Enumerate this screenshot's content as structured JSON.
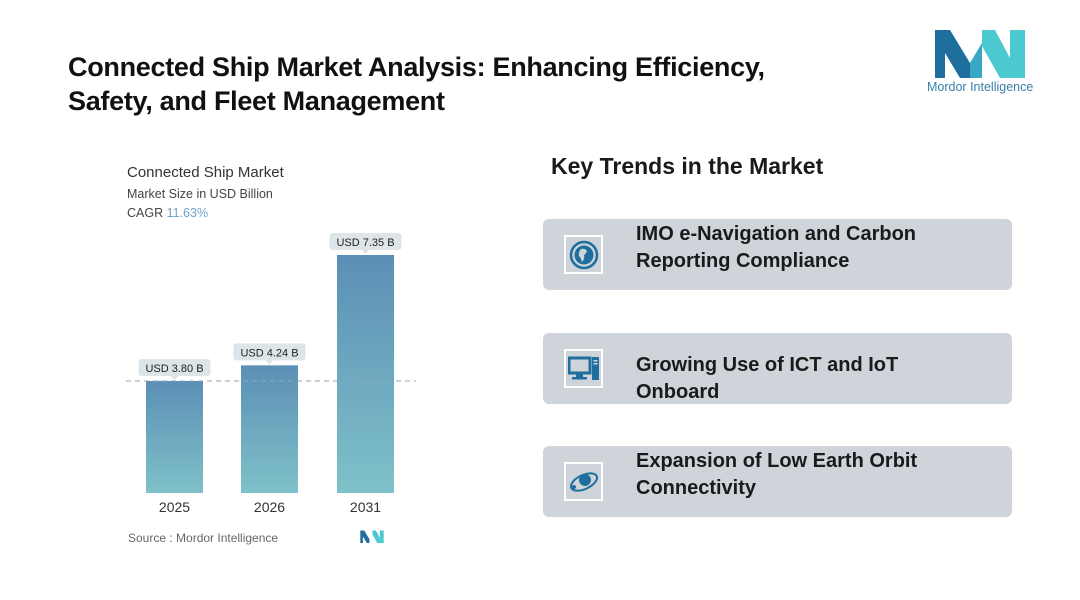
{
  "header": {
    "title_line1": "Connected Ship Market Analysis: Enhancing Efficiency,",
    "title_line2": "Safety, and Fleet Management"
  },
  "logo": {
    "text": "Mordor Intelligence",
    "colors": [
      "#1f6f9e",
      "#4cc9d0"
    ]
  },
  "chart_data": {
    "type": "bar",
    "title": "Connected Ship Market",
    "subtitle": "Market Size in USD Billion",
    "cagr_label": "CAGR",
    "cagr_value": "11.63%",
    "categories": [
      "2025",
      "2026",
      "2031"
    ],
    "values": [
      3.8,
      4.24,
      7.35
    ],
    "data_labels": [
      "USD 3.80 B",
      "USD 4.24 B",
      "USD 7.35 B"
    ],
    "reference_line": 3.8,
    "grid": false,
    "bar_gradient": [
      "#5b8fb5",
      "#7fc1c9"
    ],
    "source": "Source :  Mordor Intelligence"
  },
  "trends": {
    "title": "Key Trends in the Market",
    "items": [
      {
        "icon": "globe-icon",
        "line1": "IMO e-Navigation and Carbon",
        "line2": "Reporting Compliance"
      },
      {
        "icon": "computer-icon",
        "line1": "Growing Use of ICT and IoT",
        "line2": "Onboard"
      },
      {
        "icon": "orbit-icon",
        "line1": "Expansion of Low Earth Orbit",
        "line2": "Connectivity"
      }
    ]
  }
}
